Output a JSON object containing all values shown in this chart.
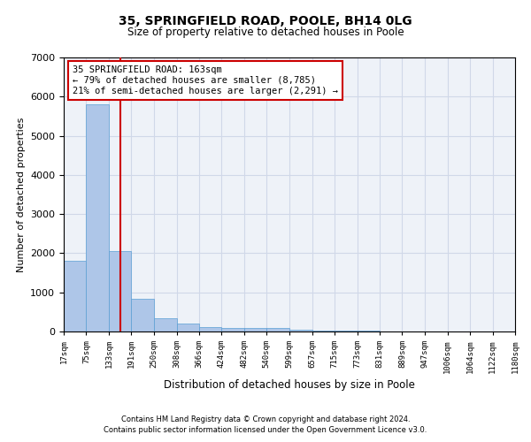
{
  "title_line1": "35, SPRINGFIELD ROAD, POOLE, BH14 0LG",
  "title_line2": "Size of property relative to detached houses in Poole",
  "xlabel": "Distribution of detached houses by size in Poole",
  "ylabel": "Number of detached properties",
  "footnote1": "Contains HM Land Registry data © Crown copyright and database right 2024.",
  "footnote2": "Contains public sector information licensed under the Open Government Licence v3.0.",
  "bin_edges": [
    17,
    75,
    133,
    191,
    250,
    308,
    366,
    424,
    482,
    540,
    599,
    657,
    715,
    773,
    831,
    889,
    947,
    1006,
    1064,
    1122,
    1180
  ],
  "bar_heights": [
    1800,
    5800,
    2050,
    830,
    340,
    200,
    115,
    100,
    100,
    80,
    50,
    30,
    20,
    15,
    10,
    8,
    5,
    5,
    5,
    5
  ],
  "bar_color": "#aec6e8",
  "bar_edgecolor": "#5a9fd4",
  "grid_color": "#d0d8e8",
  "vline_x": 163,
  "vline_color": "#cc0000",
  "annotation_text": "35 SPRINGFIELD ROAD: 163sqm\n← 79% of detached houses are smaller (8,785)\n21% of semi-detached houses are larger (2,291) →",
  "annotation_box_edgecolor": "#cc0000",
  "annotation_box_facecolor": "#ffffff",
  "ylim": [
    0,
    7000
  ],
  "yticks": [
    0,
    1000,
    2000,
    3000,
    4000,
    5000,
    6000,
    7000
  ],
  "background_color": "#ffffff",
  "axes_background": "#eef2f8"
}
